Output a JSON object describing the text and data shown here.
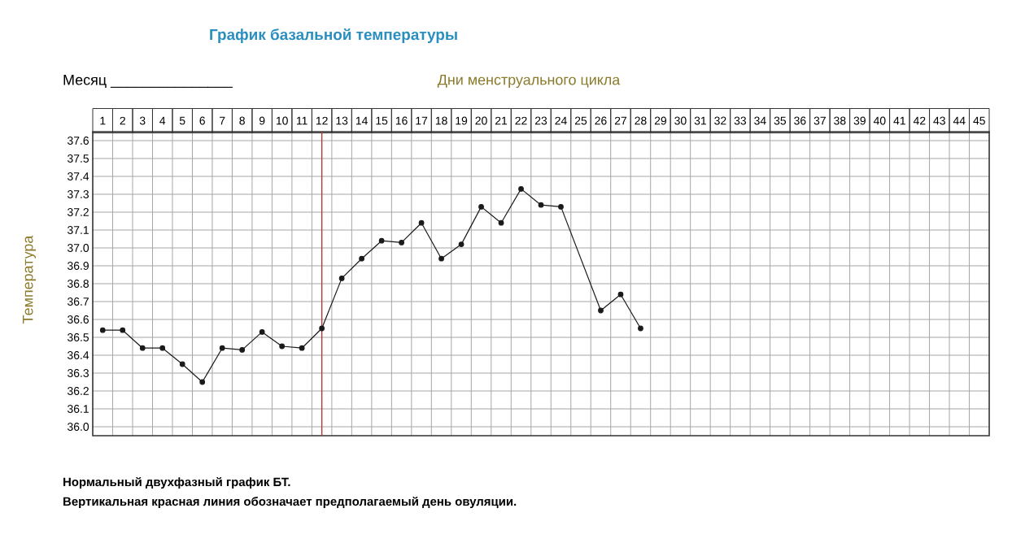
{
  "chart_data": {
    "type": "line",
    "title": "График базальной температуры",
    "xlabel": "Дни менструального цикла",
    "ylabel": "Температура",
    "annotations": [
      "Месяц _______________",
      "Нормальный двухфазный график БТ.",
      "Вертикальная красная линия обозначает предполагаемый день овуляции."
    ],
    "x": [
      1,
      2,
      3,
      4,
      5,
      6,
      7,
      8,
      9,
      10,
      11,
      12,
      13,
      14,
      15,
      16,
      17,
      18,
      19,
      20,
      21,
      22,
      23,
      24,
      26,
      27,
      28
    ],
    "series": [
      {
        "color": "#1a1a1a",
        "values": [
          36.54,
          36.54,
          36.44,
          36.44,
          36.35,
          36.25,
          36.44,
          36.43,
          36.53,
          36.45,
          36.44,
          36.55,
          36.83,
          36.94,
          37.04,
          37.03,
          37.14,
          36.94,
          37.02,
          37.23,
          37.14,
          37.33,
          37.24,
          37.23,
          36.65,
          36.74,
          36.55
        ]
      }
    ],
    "xlim": [
      0.5,
      45.5
    ],
    "ylim": [
      35.95,
      37.65
    ],
    "xticks": [
      1,
      2,
      3,
      4,
      5,
      6,
      7,
      8,
      9,
      10,
      11,
      12,
      13,
      14,
      15,
      16,
      17,
      18,
      19,
      20,
      21,
      22,
      23,
      24,
      25,
      26,
      27,
      28,
      29,
      30,
      31,
      32,
      33,
      34,
      35,
      36,
      37,
      38,
      39,
      40,
      41,
      42,
      43,
      44,
      45
    ],
    "yticks": [
      {
        "value": 36.0,
        "label": "36.0"
      },
      {
        "value": 36.1,
        "label": "36.1"
      },
      {
        "value": 36.2,
        "label": "36.2"
      },
      {
        "value": 36.3,
        "label": "36.3"
      },
      {
        "value": 36.4,
        "label": "36.4"
      },
      {
        "value": 36.5,
        "label": "36.5"
      },
      {
        "value": 36.6,
        "label": "36.6"
      },
      {
        "value": 36.7,
        "label": "36.7"
      },
      {
        "value": 36.8,
        "label": "36.8"
      },
      {
        "value": 36.9,
        "label": "36.9"
      },
      {
        "value": 37.0,
        "label": "37.0"
      },
      {
        "value": 37.1,
        "label": "37.1"
      },
      {
        "value": 37.2,
        "label": "37.2"
      },
      {
        "value": 37.3,
        "label": "37.3"
      },
      {
        "value": 37.4,
        "label": "37.4"
      },
      {
        "value": 37.5,
        "label": "37.5"
      },
      {
        "value": 37.6,
        "label": "37.6"
      }
    ],
    "ref_lines": [
      {
        "axis": "x",
        "value": 12,
        "color": "#b03a2e"
      }
    ],
    "grid": true,
    "marker": "circle",
    "line_style": "solid"
  }
}
